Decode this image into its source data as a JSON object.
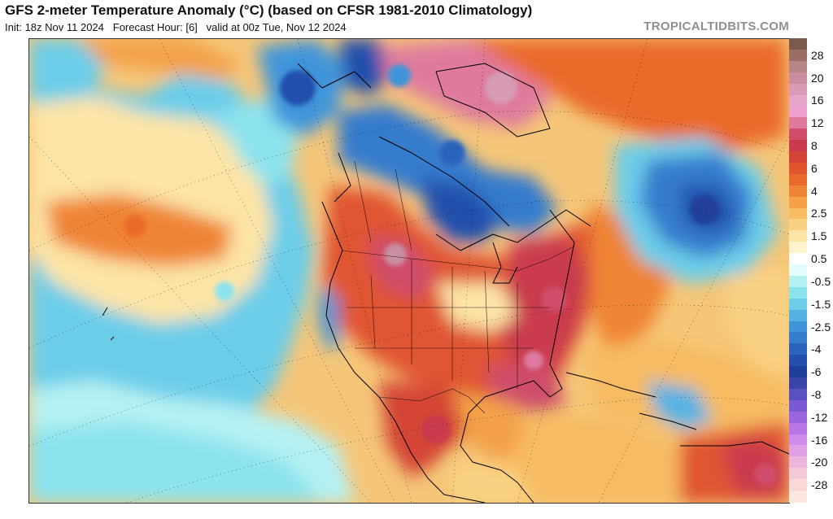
{
  "header": {
    "title": "GFS 2-meter Temperature Anomaly (°C) (based on CFSR 1981-2010 Climatology)",
    "init": "Init: 18z Nov 11 2024",
    "forecast_hour": "Forecast Hour: [6]",
    "valid": "valid at 00z Tue, Nov 12 2024",
    "credit": "TROPICALTIDBITS.COM"
  },
  "colorbar": {
    "bins": [
      {
        "color": "#7a5a4c"
      },
      {
        "label": "28",
        "color": "#9a6e66"
      },
      {
        "color": "#b88688"
      },
      {
        "label": "20",
        "color": "#c98fa0"
      },
      {
        "color": "#d79bb5"
      },
      {
        "label": "16",
        "color": "#e4a6c8"
      },
      {
        "color": "#ee9fce"
      },
      {
        "label": "12",
        "color": "#df7a9e"
      },
      {
        "color": "#cf4d6a"
      },
      {
        "label": "8",
        "color": "#c93a4e"
      },
      {
        "color": "#d44436"
      },
      {
        "label": "6",
        "color": "#e05530"
      },
      {
        "color": "#ea6a2c"
      },
      {
        "label": "4",
        "color": "#f08436"
      },
      {
        "color": "#f4a148"
      },
      {
        "label": "2.5",
        "color": "#f7bb62"
      },
      {
        "color": "#fad182"
      },
      {
        "label": "1.5",
        "color": "#fce4a6"
      },
      {
        "color": "#fef3cc"
      },
      {
        "label": "0.5",
        "color": "#ffffff"
      },
      {
        "color": "#e6fbfb"
      },
      {
        "label": "-0.5",
        "color": "#b5f1f3"
      },
      {
        "color": "#8ce3ee"
      },
      {
        "label": "-1.5",
        "color": "#6ccde9"
      },
      {
        "color": "#54b3e3"
      },
      {
        "label": "-2.5",
        "color": "#4095da"
      },
      {
        "color": "#347ccd"
      },
      {
        "label": "-4",
        "color": "#2a64bd"
      },
      {
        "color": "#244fad"
      },
      {
        "label": "-6",
        "color": "#203f99"
      },
      {
        "color": "#3b44a8"
      },
      {
        "label": "-8",
        "color": "#5a50c2"
      },
      {
        "color": "#7a5ad4"
      },
      {
        "label": "-12",
        "color": "#9a66e0"
      },
      {
        "color": "#b877e6"
      },
      {
        "label": "-16",
        "color": "#d08ae8"
      },
      {
        "color": "#e0a0e4"
      },
      {
        "label": "-20",
        "color": "#ecb6dc"
      },
      {
        "color": "#f4c8d6"
      },
      {
        "label": "-28",
        "color": "#fad8d8"
      },
      {
        "color": "#fde6e0"
      }
    ]
  },
  "map": {
    "ocean_color": "#f5c678",
    "cold_color": "#8ce3ee",
    "deep_cold_color": "#2a64bd",
    "warm_color": "#f08436",
    "hot_color": "#c93a4e",
    "pink_color": "#df7a9e",
    "white_color": "#ffffff",
    "land_outline_color": "#000000"
  }
}
